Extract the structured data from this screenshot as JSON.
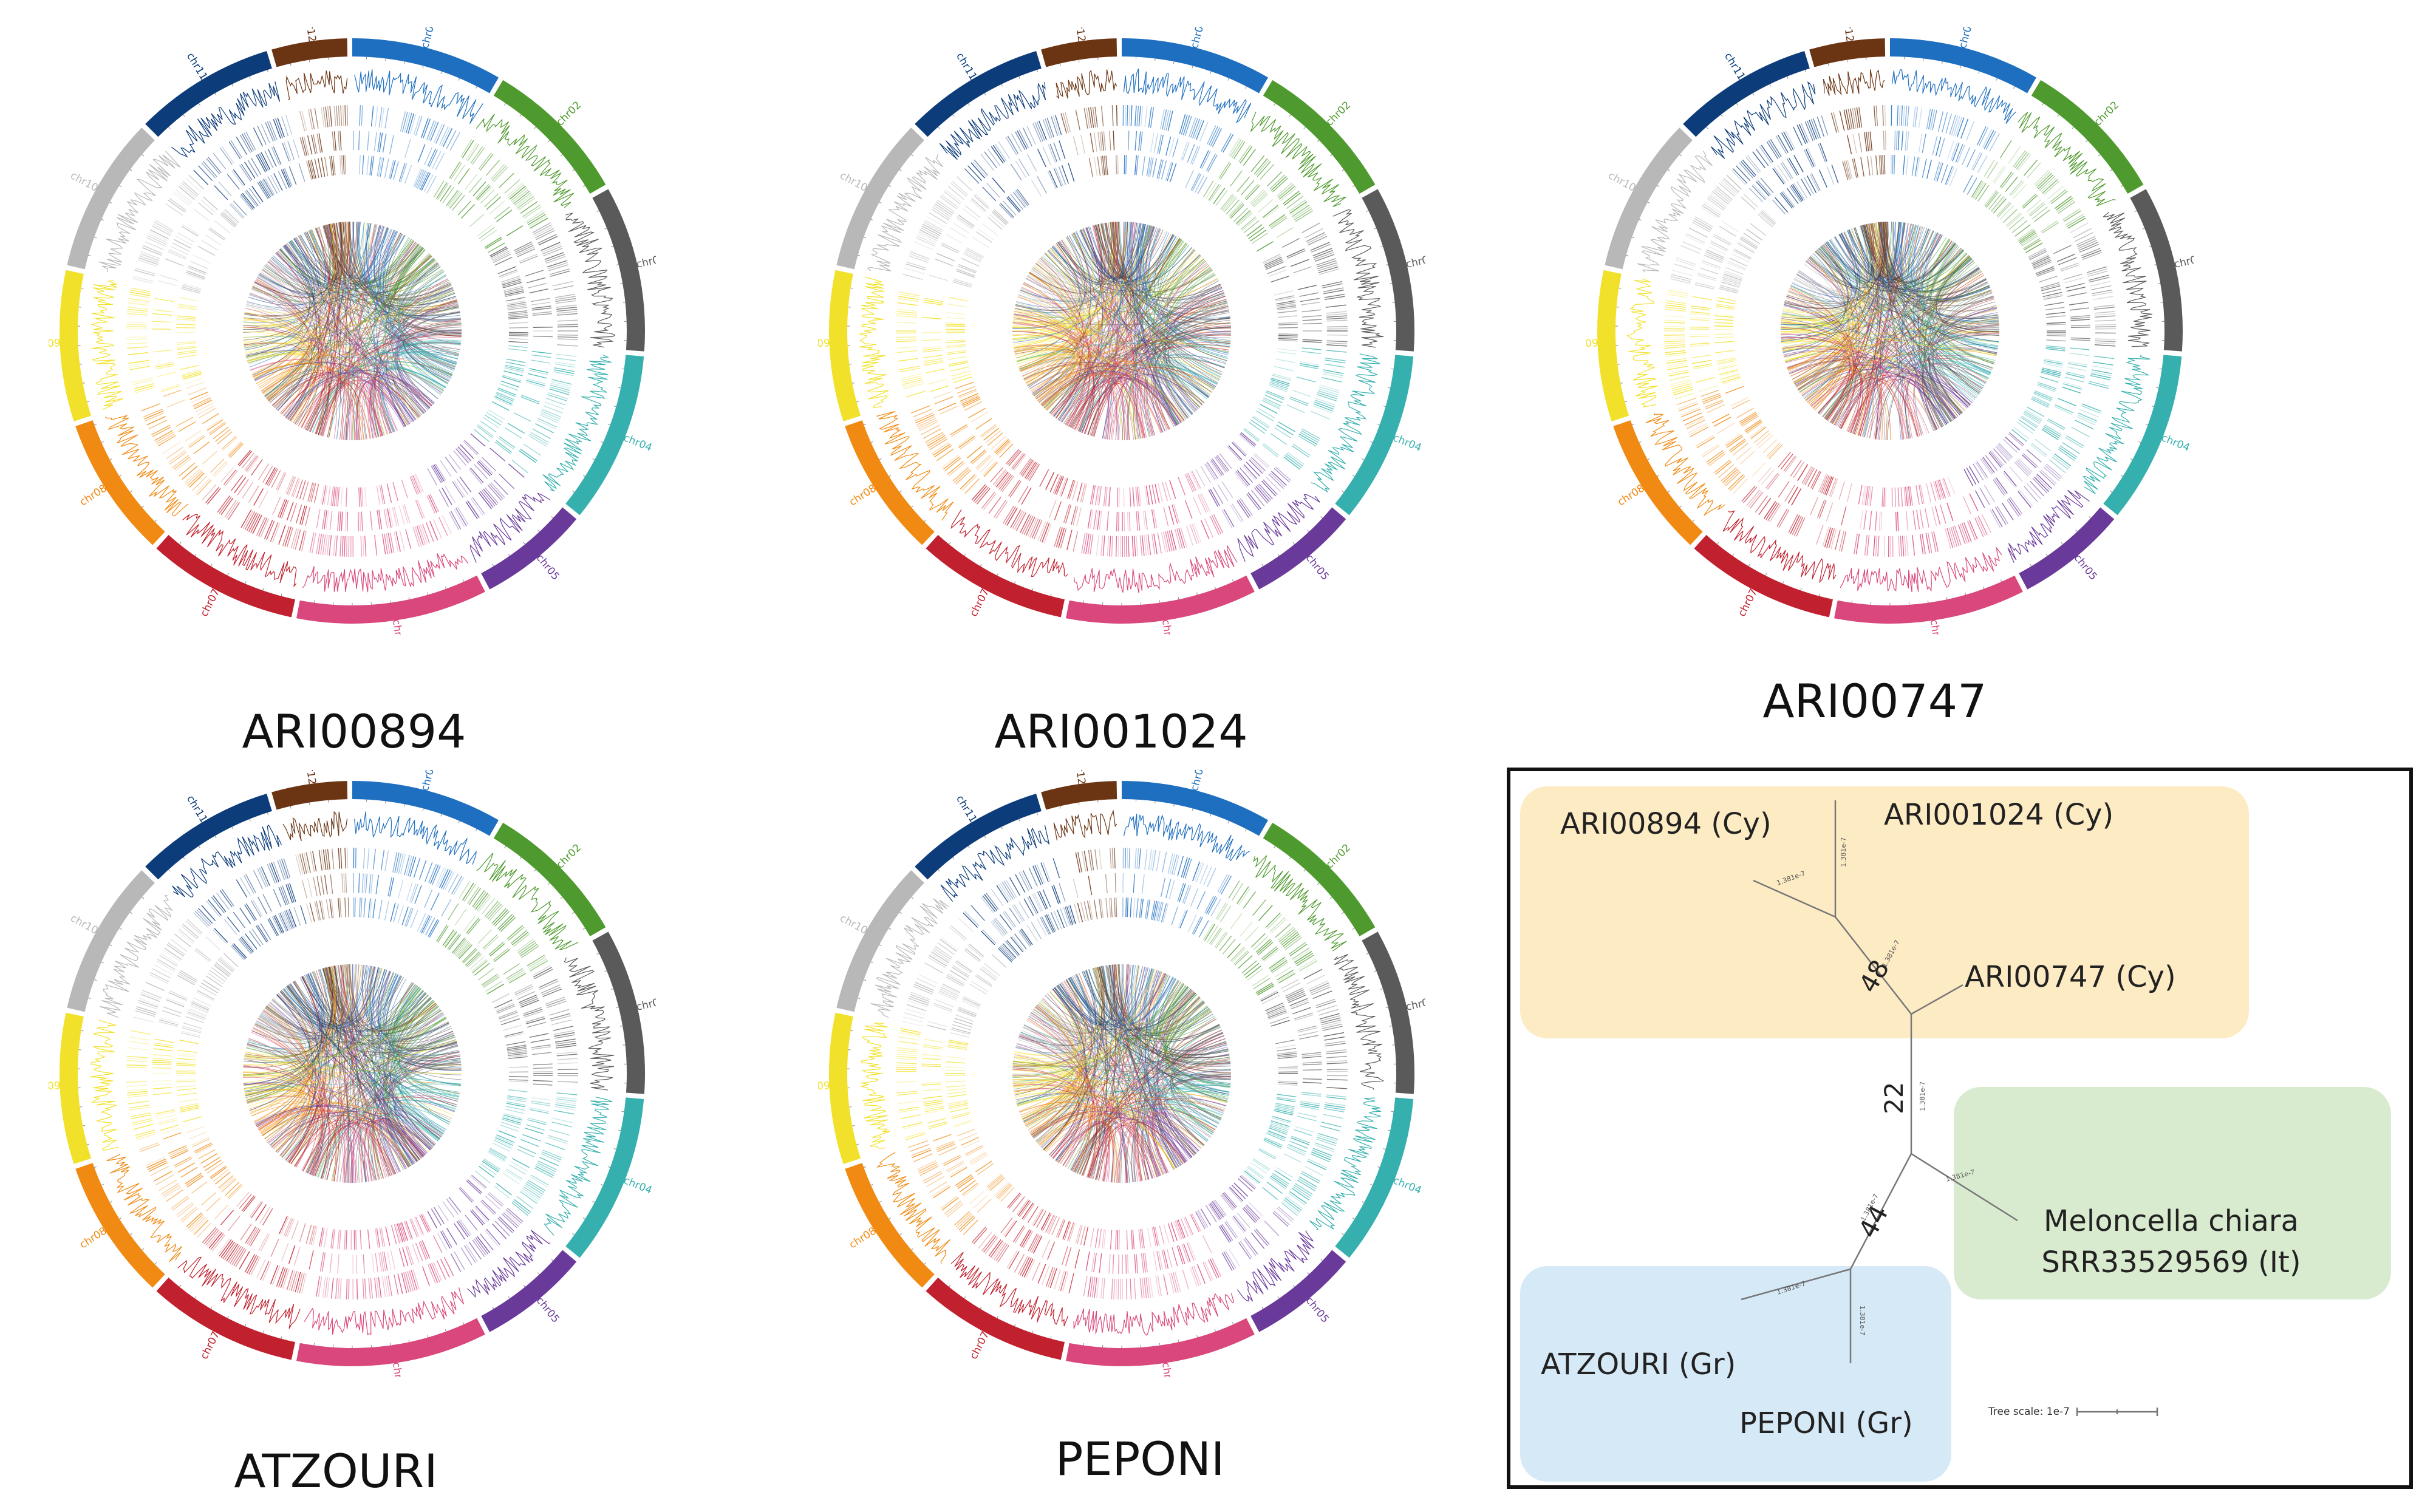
{
  "chromosome_labels": [
    "chr01",
    "chr02",
    "chr03",
    "chr04",
    "chr05",
    "chr06",
    "chr07",
    "chr08",
    "chr09",
    "chr10",
    "chr11",
    "chr12"
  ],
  "chromosome_colors": [
    "#1f6fc0",
    "#4f9a2e",
    "#5a5a5a",
    "#35b0ae",
    "#6a3a9a",
    "#d9477c",
    "#c1202e",
    "#f08a12",
    "#f2e12a",
    "#b8b8b8",
    "#0d3c7a",
    "#6b3514"
  ],
  "panels": [
    {
      "label": "ARI00894"
    },
    {
      "label": "ARI001024"
    },
    {
      "label": "ARI00747"
    },
    {
      "label": "ATZOURI"
    },
    {
      "label": "PEPONI"
    }
  ],
  "tree": {
    "groups": [
      {
        "name": "Cy",
        "color": "#fdebc4"
      },
      {
        "name": "It",
        "color": "#d9ebcf"
      },
      {
        "name": "Gr",
        "color": "#d6e9f7"
      }
    ],
    "leaves": [
      {
        "label": "ARI00894 (Cy)"
      },
      {
        "label": "ARI001024 (Cy)"
      },
      {
        "label": "ARI00747 (Cy)"
      },
      {
        "label": "Meloncella chiara"
      },
      {
        "label": "SRR33529569 (It)"
      },
      {
        "label": "ATZOURI (Gr)"
      },
      {
        "label": "PEPONI (Gr)"
      }
    ],
    "bootstrap": [
      "48",
      "22",
      "44"
    ],
    "branch_length_label": "1.381e-7",
    "scale_label": "Tree scale: 1e-7"
  }
}
